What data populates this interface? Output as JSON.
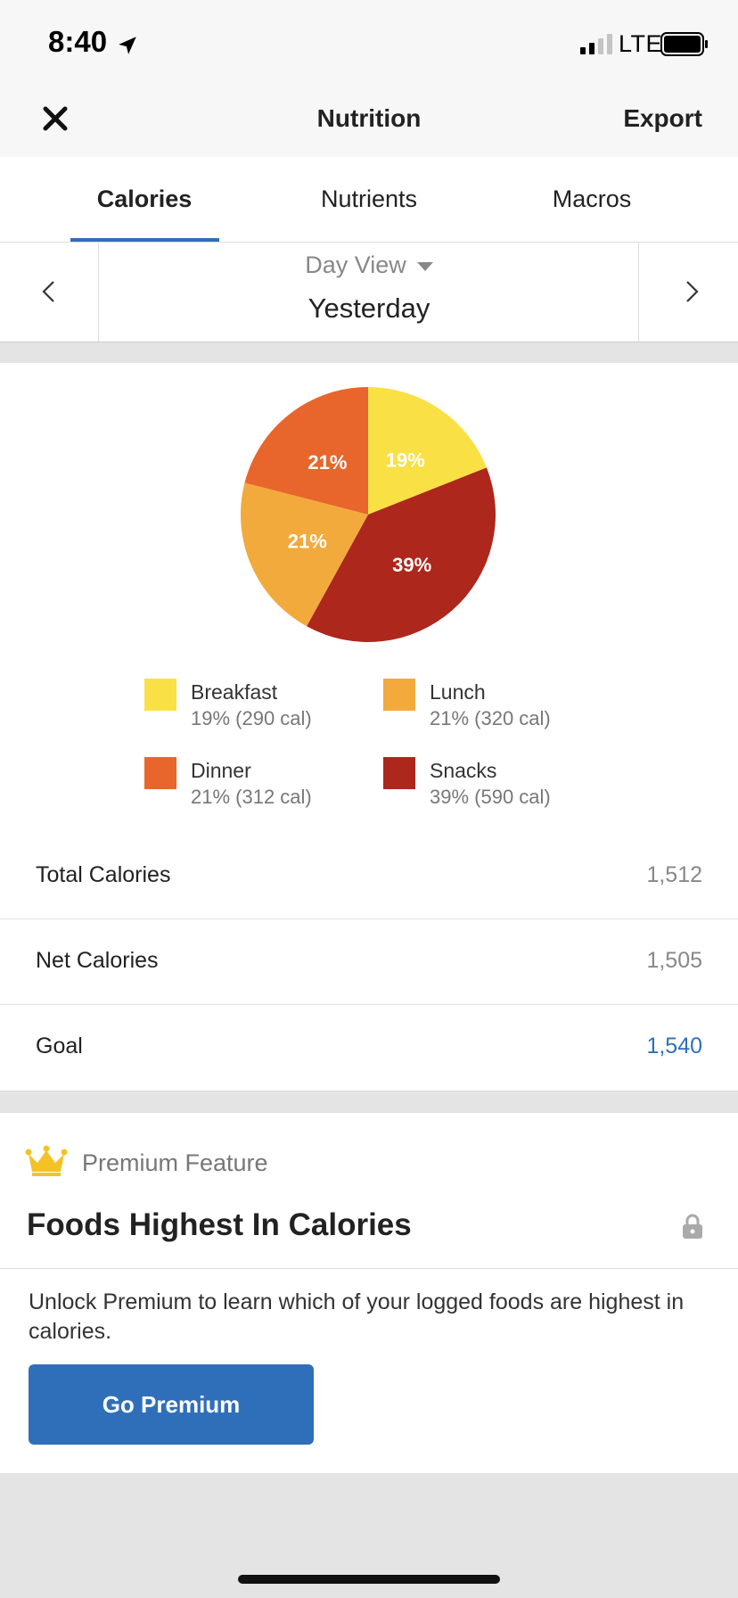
{
  "status": {
    "time": "8:40",
    "network": "LTE"
  },
  "navbar": {
    "title": "Nutrition",
    "export_label": "Export"
  },
  "tabs": [
    {
      "label": "Calories",
      "active": true
    },
    {
      "label": "Nutrients",
      "active": false
    },
    {
      "label": "Macros",
      "active": false
    }
  ],
  "date_nav": {
    "view_mode": "Day View",
    "label": "Yesterday"
  },
  "chart_data": {
    "type": "pie",
    "slices": [
      {
        "name": "Breakfast",
        "percent": 19,
        "label": "19%",
        "calories": 290,
        "color": "#f9e045"
      },
      {
        "name": "Snacks",
        "percent": 39,
        "label": "39%",
        "calories": 590,
        "color": "#ad271c"
      },
      {
        "name": "Lunch",
        "percent": 21,
        "label": "21%",
        "calories": 320,
        "color": "#f2aa3d"
      },
      {
        "name": "Dinner",
        "percent": 21,
        "label": "21%",
        "calories": 312,
        "color": "#e8662b"
      }
    ]
  },
  "legend": [
    {
      "name": "Breakfast",
      "detail": "19% (290 cal)",
      "color": "#f9e045"
    },
    {
      "name": "Lunch",
      "detail": "21% (320 cal)",
      "color": "#f2aa3d"
    },
    {
      "name": "Dinner",
      "detail": "21% (312 cal)",
      "color": "#e8662b"
    },
    {
      "name": "Snacks",
      "detail": "39% (590 cal)",
      "color": "#ad271c"
    }
  ],
  "stats": [
    {
      "label": "Total Calories",
      "value": "1,512"
    },
    {
      "label": "Net Calories",
      "value": "1,505"
    },
    {
      "label": "Goal",
      "value": "1,540"
    }
  ],
  "premium": {
    "badge": "Premium Feature",
    "title": "Foods Highest In Calories",
    "description": "Unlock Premium to learn which of your logged foods are highest in calories.",
    "button_label": "Go Premium"
  },
  "colors": {
    "accent": "#2f6fba",
    "crown": "#f5c225"
  }
}
